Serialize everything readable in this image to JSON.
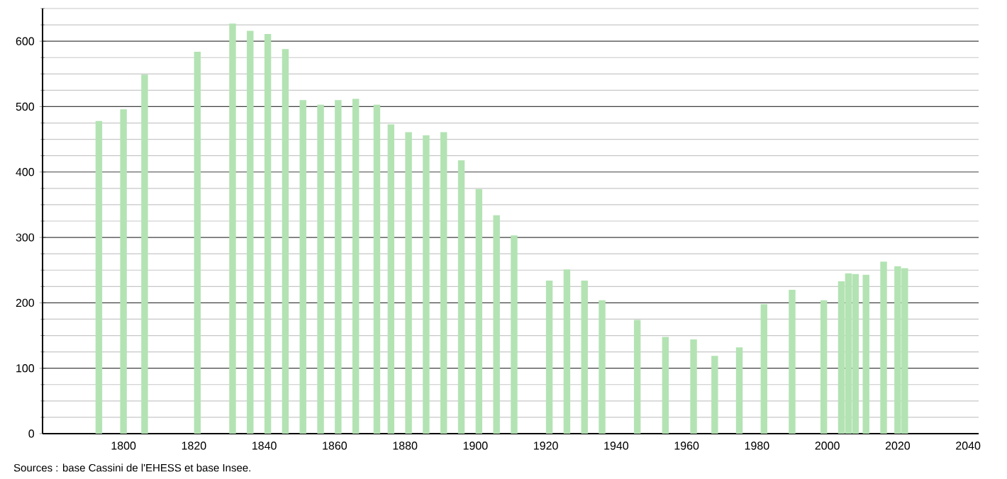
{
  "chart_data": {
    "type": "bar",
    "color": "#b3e3b3",
    "x": [
      1793,
      1800,
      1806,
      1821,
      1831,
      1836,
      1841,
      1846,
      1851,
      1856,
      1861,
      1866,
      1872,
      1876,
      1881,
      1886,
      1891,
      1896,
      1901,
      1906,
      1911,
      1921,
      1926,
      1931,
      1936,
      1946,
      1954,
      1962,
      1968,
      1975,
      1982,
      1990,
      1999,
      2004,
      2006,
      2008,
      2011,
      2016,
      2020,
      2022
    ],
    "values": [
      478,
      496,
      549,
      584,
      627,
      616,
      611,
      588,
      510,
      503,
      510,
      512,
      503,
      473,
      461,
      456,
      461,
      418,
      374,
      334,
      303,
      234,
      251,
      234,
      204,
      174,
      148,
      144,
      119,
      132,
      198,
      220,
      204,
      233,
      245,
      244,
      243,
      263,
      256,
      253
    ],
    "xlim": [
      1777,
      2043
    ],
    "xticks": [
      1800,
      1820,
      1840,
      1860,
      1880,
      1900,
      1920,
      1940,
      1960,
      1980,
      2000,
      2020,
      2040
    ],
    "ylim": [
      0,
      650
    ],
    "yticks": [
      0,
      {
        "value": 25,
        "label": null
      },
      {
        "value": 50,
        "label": null
      },
      {
        "value": 75,
        "label": null
      },
      100,
      {
        "value": 125,
        "label": null
      },
      {
        "value": 150,
        "label": null
      },
      {
        "value": 175,
        "label": null
      },
      200,
      {
        "value": 225,
        "label": null
      },
      {
        "value": 250,
        "label": null
      },
      {
        "value": 275,
        "label": null
      },
      300,
      {
        "value": 325,
        "label": null
      },
      {
        "value": 350,
        "label": null
      },
      {
        "value": 375,
        "label": null
      },
      400,
      {
        "value": 425,
        "label": null
      },
      {
        "value": 450,
        "label": null
      },
      {
        "value": 475,
        "label": null
      },
      500,
      {
        "value": 525,
        "label": null
      },
      {
        "value": 550,
        "label": null
      },
      {
        "value": 575,
        "label": null
      },
      600,
      {
        "value": 625,
        "label": null
      },
      {
        "value": 650,
        "label": null
      }
    ],
    "grid": "y",
    "annotations": [
      "Sources : base Cassini de l'EHESS et base Insee."
    ]
  }
}
